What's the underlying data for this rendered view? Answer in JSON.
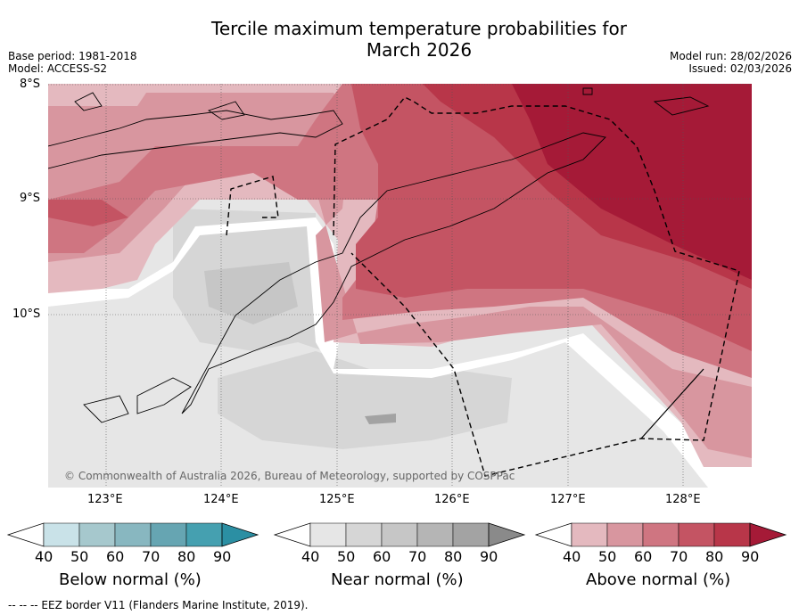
{
  "title_line1": "Tercile maximum temperature probabilities for",
  "title_line2": "March 2026",
  "base_period": "Base period: 1981-2018",
  "model": "Model: ACCESS-S2",
  "model_run": "Model run: 28/02/2026",
  "issued": "Issued: 02/03/2026",
  "lat_labels": [
    "8°S",
    "9°S",
    "10°S"
  ],
  "lon_labels": [
    "123°E",
    "124°E",
    "125°E",
    "126°E",
    "127°E",
    "128°E"
  ],
  "copyright": "© Commonwealth of Australia 2026, Bureau of Meteorology, supported by COSPPac",
  "colorbars": [
    {
      "label": "Below normal (%)",
      "ticks": [
        "40",
        "50",
        "60",
        "70",
        "80",
        "90"
      ],
      "colors": [
        "#ffffff",
        "#c9e2e8",
        "#a6c8cd",
        "#88b7c0",
        "#66a5b2",
        "#45a0b0",
        "#2b8fa3"
      ]
    },
    {
      "label": "Near normal (%)",
      "ticks": [
        "40",
        "50",
        "60",
        "70",
        "80",
        "90"
      ],
      "colors": [
        "#ffffff",
        "#e6e6e6",
        "#d6d6d6",
        "#c6c6c6",
        "#b5b5b5",
        "#a3a3a3",
        "#8a8a8a"
      ]
    },
    {
      "label": "Above normal (%)",
      "ticks": [
        "40",
        "50",
        "60",
        "70",
        "80",
        "90"
      ],
      "colors": [
        "#ffffff",
        "#e4b9bf",
        "#d8969f",
        "#cf7581",
        "#c45463",
        "#b83649",
        "#a51a37"
      ]
    }
  ],
  "footer": "--  --  -- EEZ border V11 (Flanders Marine Institute, 2019)."
}
